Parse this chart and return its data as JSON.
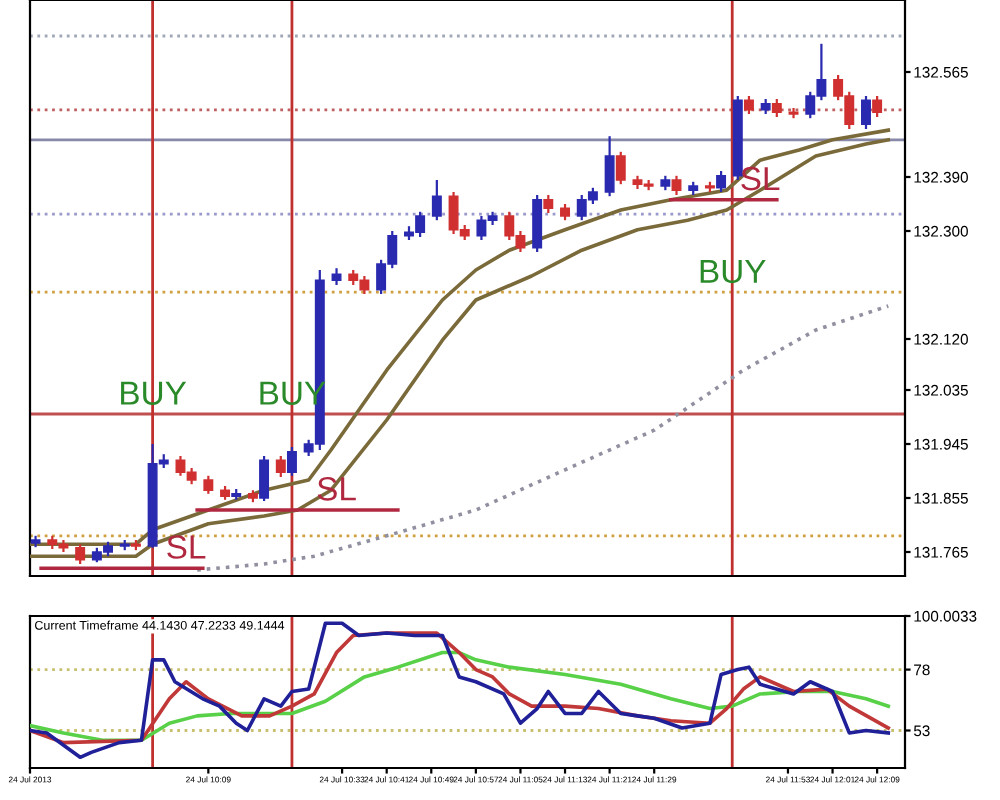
{
  "chart_data": [
    {
      "type": "candlestick",
      "tick_labels": "y",
      "xlim": [
        "2013-07-24T09:37",
        "2013-07-24T12:14"
      ],
      "ylim": [
        131.725,
        132.685
      ],
      "yticks": [
        {
          "value": 131.765,
          "label": "131.765"
        },
        {
          "value": 131.855,
          "label": "131.855"
        },
        {
          "value": 131.945,
          "label": "131.945"
        },
        {
          "value": 132.035,
          "label": "132.035"
        },
        {
          "value": 132.12,
          "label": "132.120"
        },
        {
          "value": 132.3,
          "label": "132.300"
        },
        {
          "value": 132.39,
          "label": "132.390"
        },
        {
          "value": 132.565,
          "label": "132.565"
        }
      ],
      "x": [
        "2013-07-24T09:38",
        "2013-07-24T09:41",
        "2013-07-24T09:43",
        "2013-07-24T09:46",
        "2013-07-24T09:49",
        "2013-07-24T09:51",
        "2013-07-24T09:54",
        "2013-07-24T09:56",
        "2013-07-24T09:59",
        "2013-07-24T10:01",
        "2013-07-24T10:04",
        "2013-07-24T10:06",
        "2013-07-24T10:09",
        "2013-07-24T10:12",
        "2013-07-24T10:14",
        "2013-07-24T10:17",
        "2013-07-24T10:19",
        "2013-07-24T10:22",
        "2013-07-24T10:24",
        "2013-07-24T10:27",
        "2013-07-24T10:29",
        "2013-07-24T10:32",
        "2013-07-24T10:35",
        "2013-07-24T10:37",
        "2013-07-24T10:40",
        "2013-07-24T10:42",
        "2013-07-24T10:45",
        "2013-07-24T10:47",
        "2013-07-24T10:50",
        "2013-07-24T10:53",
        "2013-07-24T10:55",
        "2013-07-24T10:58",
        "2013-07-24T11:00",
        "2013-07-24T11:03",
        "2013-07-24T11:05",
        "2013-07-24T11:08",
        "2013-07-24T11:10",
        "2013-07-24T11:13",
        "2013-07-24T11:16",
        "2013-07-24T11:18",
        "2013-07-24T11:21",
        "2013-07-24T11:23",
        "2013-07-24T11:26",
        "2013-07-24T11:28",
        "2013-07-24T11:31",
        "2013-07-24T11:33",
        "2013-07-24T11:36",
        "2013-07-24T11:39",
        "2013-07-24T11:41",
        "2013-07-24T11:44",
        "2013-07-24T11:46",
        "2013-07-24T11:49",
        "2013-07-24T11:51",
        "2013-07-24T11:54",
        "2013-07-24T11:57",
        "2013-07-24T11:59",
        "2013-07-24T12:02",
        "2013-07-24T12:04",
        "2013-07-24T12:07",
        "2013-07-24T12:09"
      ],
      "ohlc": [
        [
          131.78,
          131.792,
          131.773,
          131.785
        ],
        [
          131.785,
          131.792,
          131.77,
          131.778
        ],
        [
          131.778,
          131.785,
          131.765,
          131.772
        ],
        [
          131.772,
          131.778,
          131.745,
          131.752
        ],
        [
          131.752,
          131.772,
          131.748,
          131.765
        ],
        [
          131.765,
          131.782,
          131.758,
          131.775
        ],
        [
          131.775,
          131.785,
          131.768,
          131.778
        ],
        [
          131.778,
          131.785,
          131.768,
          131.775
        ],
        [
          131.775,
          131.945,
          131.772,
          131.912
        ],
        [
          131.912,
          131.928,
          131.905,
          131.918
        ],
        [
          131.918,
          131.925,
          131.892,
          131.898
        ],
        [
          131.898,
          131.905,
          131.878,
          131.885
        ],
        [
          131.885,
          131.892,
          131.862,
          131.868
        ],
        [
          131.868,
          131.875,
          131.852,
          131.858
        ],
        [
          131.858,
          131.87,
          131.852,
          131.862
        ],
        [
          131.862,
          131.868,
          131.848,
          131.855
        ],
        [
          131.855,
          131.925,
          131.85,
          131.918
        ],
        [
          131.918,
          131.925,
          131.89,
          131.898
        ],
        [
          131.898,
          131.94,
          131.892,
          131.932
        ],
        [
          131.932,
          131.952,
          131.925,
          131.945
        ],
        [
          131.945,
          132.235,
          131.935,
          132.218
        ],
        [
          132.218,
          132.238,
          132.21,
          132.228
        ],
        [
          132.228,
          132.235,
          132.21,
          132.218
        ],
        [
          132.218,
          132.225,
          132.195,
          132.202
        ],
        [
          132.202,
          132.252,
          132.195,
          132.245
        ],
        [
          132.245,
          132.3,
          132.238,
          132.292
        ],
        [
          132.292,
          132.308,
          132.285,
          132.298
        ],
        [
          132.298,
          132.332,
          132.29,
          132.325
        ],
        [
          132.325,
          132.385,
          132.318,
          132.358
        ],
        [
          132.358,
          132.365,
          132.295,
          132.302
        ],
        [
          132.302,
          132.31,
          132.285,
          132.292
        ],
        [
          132.292,
          132.325,
          132.285,
          132.318
        ],
        [
          132.318,
          132.332,
          132.31,
          132.325
        ],
        [
          132.325,
          132.332,
          132.285,
          132.292
        ],
        [
          132.292,
          132.3,
          132.265,
          132.272
        ],
        [
          132.272,
          132.36,
          132.265,
          132.352
        ],
        [
          132.352,
          132.36,
          132.33,
          132.338
        ],
        [
          132.338,
          132.345,
          132.318,
          132.325
        ],
        [
          132.325,
          132.36,
          132.318,
          132.352
        ],
        [
          132.352,
          132.372,
          132.345,
          132.365
        ],
        [
          132.365,
          132.458,
          132.358,
          132.425
        ],
        [
          132.425,
          132.432,
          132.378,
          132.385
        ],
        [
          132.385,
          132.392,
          132.37,
          132.378
        ],
        [
          132.378,
          132.385,
          132.368,
          132.375
        ],
        [
          132.375,
          132.392,
          132.368,
          132.385
        ],
        [
          132.385,
          132.392,
          132.36,
          132.368
        ],
        [
          132.368,
          132.382,
          132.36,
          132.375
        ],
        [
          132.375,
          132.382,
          132.365,
          132.372
        ],
        [
          132.372,
          132.4,
          132.365,
          132.392
        ],
        [
          132.392,
          132.525,
          132.385,
          132.518
        ],
        [
          132.518,
          132.525,
          132.495,
          132.502
        ],
        [
          132.502,
          132.52,
          132.495,
          132.512
        ],
        [
          132.512,
          132.52,
          132.49,
          132.498
        ],
        [
          132.498,
          132.505,
          132.488,
          132.495
        ],
        [
          132.495,
          132.532,
          132.488,
          132.525
        ],
        [
          132.525,
          132.612,
          132.518,
          132.552
        ],
        [
          132.552,
          132.56,
          132.518,
          132.525
        ],
        [
          132.525,
          132.532,
          132.47,
          132.478
        ],
        [
          132.478,
          132.525,
          132.47,
          132.518
        ],
        [
          132.518,
          132.525,
          132.49,
          132.498
        ]
      ],
      "colors": [
        "#2a2ab0",
        "#d03030",
        "#d03030",
        "#d03030",
        "#2a2ab0",
        "#2a2ab0",
        "#2a2ab0",
        "#d03030",
        "#2a2ab0",
        "#2a2ab0",
        "#d03030",
        "#d03030",
        "#d03030",
        "#d03030",
        "#2a2ab0",
        "#d03030",
        "#2a2ab0",
        "#d03030",
        "#2a2ab0",
        "#2a2ab0",
        "#2a2ab0",
        "#2a2ab0",
        "#d03030",
        "#d03030",
        "#2a2ab0",
        "#2a2ab0",
        "#2a2ab0",
        "#2a2ab0",
        "#2a2ab0",
        "#d03030",
        "#d03030",
        "#2a2ab0",
        "#2a2ab0",
        "#d03030",
        "#d03030",
        "#2a2ab0",
        "#d03030",
        "#d03030",
        "#2a2ab0",
        "#2a2ab0",
        "#2a2ab0",
        "#d03030",
        "#d03030",
        "#d03030",
        "#2a2ab0",
        "#d03030",
        "#2a2ab0",
        "#d03030",
        "#2a2ab0",
        "#2a2ab0",
        "#d03030",
        "#2a2ab0",
        "#d03030",
        "#d03030",
        "#2a2ab0",
        "#2a2ab0",
        "#d03030",
        "#d03030",
        "#2a2ab0",
        "#d03030"
      ],
      "series": [
        {
          "type": "line",
          "color": "#7a6a3a",
          "x": [
            "2013-07-24T09:37",
            "2013-07-24T09:56",
            "2013-07-24T09:59",
            "2013-07-24T10:09",
            "2013-07-24T10:19",
            "2013-07-24T10:27",
            "2013-07-24T10:31",
            "2013-07-24T10:41",
            "2013-07-24T10:51",
            "2013-07-24T10:57",
            "2013-07-24T11:03",
            "2013-07-24T11:13",
            "2013-07-24T11:23",
            "2013-07-24T11:32",
            "2013-07-24T11:42",
            "2013-07-24T11:48",
            "2013-07-24T11:55",
            "2013-07-24T12:01",
            "2013-07-24T12:11"
          ],
          "values": [
            131.778,
            131.778,
            131.802,
            131.835,
            131.868,
            131.885,
            131.935,
            132.068,
            132.185,
            132.235,
            132.268,
            132.302,
            132.335,
            132.352,
            132.368,
            132.418,
            132.435,
            132.452,
            132.468
          ]
        },
        {
          "type": "line",
          "color": "#7a6a3a",
          "x": [
            "2013-07-24T09:37",
            "2013-07-24T09:56",
            "2013-07-24T09:59",
            "2013-07-24T10:09",
            "2013-07-24T10:19",
            "2013-07-24T10:25",
            "2013-07-24T10:31",
            "2013-07-24T10:41",
            "2013-07-24T10:51",
            "2013-07-24T10:57",
            "2013-07-24T11:07",
            "2013-07-24T11:16",
            "2013-07-24T11:26",
            "2013-07-24T11:35",
            "2013-07-24T11:42",
            "2013-07-24T11:48",
            "2013-07-24T11:58",
            "2013-07-24T12:07",
            "2013-07-24T12:11"
          ],
          "values": [
            131.758,
            131.758,
            131.778,
            131.812,
            131.825,
            131.835,
            131.868,
            131.985,
            132.118,
            132.185,
            132.225,
            132.268,
            132.302,
            132.318,
            132.335,
            132.368,
            132.425,
            132.445,
            132.452
          ]
        },
        {
          "type": "line",
          "color": "#9090a0",
          "line_style": "dotted",
          "x": [
            "2013-07-24T10:07",
            "2013-07-24T10:19",
            "2013-07-24T10:28",
            "2013-07-24T10:41",
            "2013-07-24T10:57",
            "2013-07-24T11:13",
            "2013-07-24T11:29",
            "2013-07-24T11:45",
            "2013-07-24T11:58",
            "2013-07-24T12:11"
          ],
          "values": [
            131.735,
            131.745,
            131.758,
            131.792,
            131.835,
            131.902,
            131.968,
            132.068,
            132.135,
            132.175
          ]
        },
        {
          "type": "line",
          "color": "#b02840",
          "x": [
            "2013-07-24T09:39",
            "2013-07-24T10:08"
          ],
          "values": [
            131.738,
            131.738
          ]
        },
        {
          "type": "line",
          "color": "#b02840",
          "x": [
            "2013-07-24T10:07",
            "2013-07-24T10:43"
          ],
          "values": [
            131.835,
            131.835
          ]
        },
        {
          "type": "line",
          "color": "#b02840",
          "x": [
            "2013-07-24T11:32",
            "2013-07-24T11:51"
          ],
          "values": [
            132.352,
            132.352
          ]
        }
      ],
      "ref_lines": [
        {
          "axis": "y",
          "value": 132.625,
          "color": "#a0a8b8",
          "line_style": "dotted"
        },
        {
          "axis": "y",
          "value": 132.502,
          "color": "#c06060",
          "line_style": "dotted"
        },
        {
          "axis": "y",
          "value": 132.452,
          "color": "#8888aa",
          "line_style": "solid"
        },
        {
          "axis": "y",
          "value": 132.328,
          "color": "#9999cc",
          "line_style": "dotted"
        },
        {
          "axis": "y",
          "value": 132.198,
          "color": "#d0a040",
          "line_style": "dotted"
        },
        {
          "axis": "y",
          "value": 131.995,
          "color": "#c05050",
          "line_style": "solid"
        },
        {
          "axis": "y",
          "value": 131.792,
          "color": "#d0a040",
          "line_style": "dotted"
        },
        {
          "axis": "x",
          "value": "2013-07-24T09:59",
          "color": "#c0302f",
          "line_style": "solid"
        },
        {
          "axis": "x",
          "value": "2013-07-24T10:24",
          "color": "#c0302f",
          "line_style": "solid"
        },
        {
          "axis": "x",
          "value": "2013-07-24T11:43",
          "color": "#c0302f",
          "line_style": "solid"
        }
      ],
      "annotations": [
        {
          "text": "BUY",
          "x": "2013-07-24T09:59",
          "y": 132.025
        },
        {
          "text": "BUY",
          "x": "2013-07-24T10:24",
          "y": 132.025
        },
        {
          "text": "BUY",
          "x": "2013-07-24T11:43",
          "y": 132.228
        },
        {
          "text": "SL",
          "x": "2013-07-24T10:05",
          "y": 131.738
        },
        {
          "text": "SL",
          "x": "2013-07-24T10:32",
          "y": 131.835
        },
        {
          "text": "SL",
          "x": "2013-07-24T11:48",
          "y": 132.352
        }
      ]
    },
    {
      "type": "line",
      "title": "Current Timeframe 44.1430 47.2233 49.1444",
      "xlim": [
        "2013-07-24T09:37",
        "2013-07-24T12:14"
      ],
      "ylim": [
        37.6,
        100.0033
      ],
      "yticks": [
        {
          "value": 53,
          "label": "53"
        },
        {
          "value": 78,
          "label": "78"
        },
        {
          "value": 100.0033,
          "label": "100.0033"
        }
      ],
      "xticks": [
        {
          "value": "2013-07-24T09:37",
          "label": "24 Jul 2013"
        },
        {
          "value": "2013-07-24T10:09",
          "label": "24 Jul 10:09"
        },
        {
          "value": "2013-07-24T10:33",
          "label": "24 Jul 10:33"
        },
        {
          "value": "2013-07-24T10:41",
          "label": "24 Jul 10:41"
        },
        {
          "value": "2013-07-24T10:49",
          "label": "24 Jul 10:49"
        },
        {
          "value": "2013-07-24T10:57",
          "label": "24 Jul 10:57"
        },
        {
          "value": "2013-07-24T11:05",
          "label": "24 Jul 11:05"
        },
        {
          "value": "2013-07-24T11:13",
          "label": "24 Jul 11:13"
        },
        {
          "value": "2013-07-24T11:21",
          "label": "24 Jul 11:21"
        },
        {
          "value": "2013-07-24T11:29",
          "label": "24 Jul 11:29"
        },
        {
          "value": "2013-07-24T11:53",
          "label": "24 Jul 11:53"
        },
        {
          "value": "2013-07-24T12:01",
          "label": "24 Jul 12:01"
        },
        {
          "value": "2013-07-24T12:09",
          "label": "24 Jul 12:09"
        }
      ],
      "series": [
        {
          "color": "#58d048",
          "x": [
            "2013-07-24T09:37",
            "2013-07-24T09:43",
            "2013-07-24T09:50",
            "2013-07-24T09:57",
            "2013-07-24T10:02",
            "2013-07-24T10:07",
            "2013-07-24T10:13",
            "2013-07-24T10:20",
            "2013-07-24T10:24",
            "2013-07-24T10:30",
            "2013-07-24T10:37",
            "2013-07-24T10:43",
            "2013-07-24T10:51",
            "2013-07-24T10:54",
            "2013-07-24T10:57",
            "2013-07-24T11:03",
            "2013-07-24T11:13",
            "2013-07-24T11:23",
            "2013-07-24T11:32",
            "2013-07-24T11:39",
            "2013-07-24T11:43",
            "2013-07-24T11:48",
            "2013-07-24T11:55",
            "2013-07-24T12:01",
            "2013-07-24T12:07",
            "2013-07-24T12:11"
          ],
          "values": [
            55,
            52,
            49,
            49,
            56,
            59,
            60,
            60,
            60,
            65,
            75,
            79,
            85,
            85,
            82,
            79,
            76,
            72,
            66,
            62,
            63,
            68,
            69,
            69,
            66,
            63
          ]
        },
        {
          "color": "#c03838",
          "x": [
            "2013-07-24T09:37",
            "2013-07-24T09:43",
            "2013-07-24T09:57",
            "2013-07-24T10:02",
            "2013-07-24T10:05",
            "2013-07-24T10:09",
            "2013-07-24T10:15",
            "2013-07-24T10:20",
            "2013-07-24T10:24",
            "2013-07-24T10:28",
            "2013-07-24T10:32",
            "2013-07-24T10:35",
            "2013-07-24T10:41",
            "2013-07-24T10:50",
            "2013-07-24T10:54",
            "2013-07-24T10:57",
            "2013-07-24T11:00",
            "2013-07-24T11:03",
            "2013-07-24T11:07",
            "2013-07-24T11:13",
            "2013-07-24T11:19",
            "2013-07-24T11:26",
            "2013-07-24T11:32",
            "2013-07-24T11:39",
            "2013-07-24T11:42",
            "2013-07-24T11:45",
            "2013-07-24T11:48",
            "2013-07-24T11:54",
            "2013-07-24T12:00",
            "2013-07-24T12:04",
            "2013-07-24T12:11"
          ],
          "values": [
            53,
            48,
            49,
            66,
            73,
            66,
            59,
            59,
            63,
            68,
            85,
            92,
            93,
            93,
            85,
            78,
            75,
            68,
            63,
            63,
            62,
            59,
            57,
            56,
            62,
            70,
            75,
            69,
            70,
            63,
            54
          ]
        },
        {
          "color": "#202098",
          "x": [
            "2013-07-24T09:37",
            "2013-07-24T09:40",
            "2013-07-24T09:46",
            "2013-07-24T09:48",
            "2013-07-24T09:53",
            "2013-07-24T09:57",
            "2013-07-24T09:59",
            "2013-07-24T10:01",
            "2013-07-24T10:03",
            "2013-07-24T10:08",
            "2013-07-24T10:11",
            "2013-07-24T10:14",
            "2013-07-24T10:16",
            "2013-07-24T10:19",
            "2013-07-24T10:22",
            "2013-07-24T10:24",
            "2013-07-24T10:27",
            "2013-07-24T10:30",
            "2013-07-24T10:33",
            "2013-07-24T10:36",
            "2013-07-24T10:41",
            "2013-07-24T10:46",
            "2013-07-24T10:51",
            "2013-07-24T10:54",
            "2013-07-24T10:57",
            "2013-07-24T11:02",
            "2013-07-24T11:05",
            "2013-07-24T11:08",
            "2013-07-24T11:10",
            "2013-07-24T11:13",
            "2013-07-24T11:16",
            "2013-07-24T11:19",
            "2013-07-24T11:23",
            "2013-07-24T11:26",
            "2013-07-24T11:29",
            "2013-07-24T11:34",
            "2013-07-24T11:39",
            "2013-07-24T11:41",
            "2013-07-24T11:44",
            "2013-07-24T11:46",
            "2013-07-24T11:48",
            "2013-07-24T11:54",
            "2013-07-24T11:57",
            "2013-07-24T12:01",
            "2013-07-24T12:04",
            "2013-07-24T12:07",
            "2013-07-24T12:11"
          ],
          "values": [
            53,
            52,
            42,
            44,
            48,
            49,
            82,
            82,
            73,
            66,
            63,
            56,
            53,
            66,
            63,
            69,
            70,
            97,
            97,
            92,
            93,
            92,
            92,
            75,
            73,
            68,
            56,
            62,
            69,
            60,
            60,
            69,
            60,
            59,
            58,
            54,
            56,
            76,
            78,
            79,
            72,
            68,
            73,
            69,
            52,
            53,
            52
          ]
        }
      ],
      "ref_lines": [
        {
          "axis": "y",
          "value": 78,
          "color": "#c8c070",
          "line_style": "dotted"
        },
        {
          "axis": "y",
          "value": 53,
          "color": "#c8c070",
          "line_style": "dotted"
        },
        {
          "axis": "x",
          "value": "2013-07-24T09:59",
          "color": "#c0302f",
          "line_style": "solid"
        },
        {
          "axis": "x",
          "value": "2013-07-24T10:24",
          "color": "#c0302f",
          "line_style": "solid"
        },
        {
          "axis": "x",
          "value": "2013-07-24T11:43",
          "color": "#c0302f",
          "line_style": "solid"
        }
      ]
    }
  ]
}
